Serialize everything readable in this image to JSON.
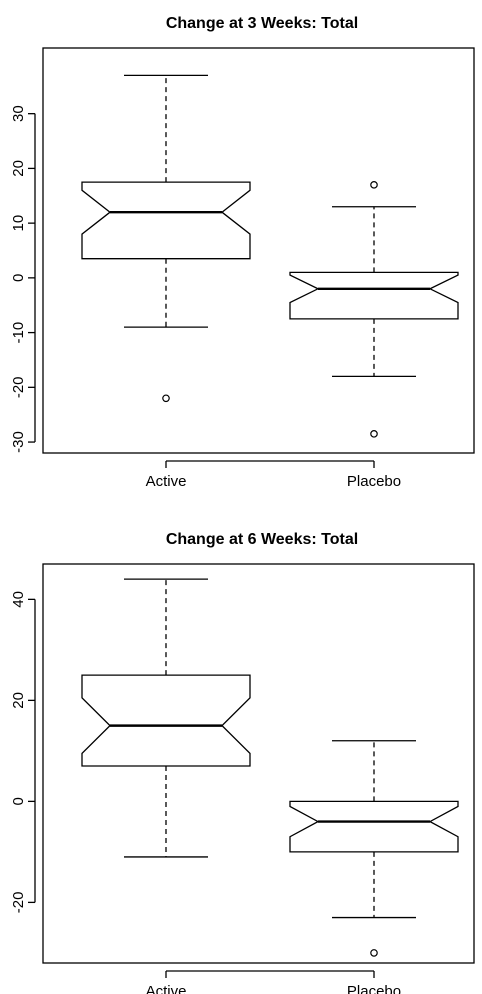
{
  "chart_data": [
    {
      "type": "boxplot",
      "title": "Change at 3 Weeks: Total",
      "xlabel": "",
      "ylabel": "",
      "categories": [
        "Active",
        "Placebo"
      ],
      "ylim": [
        -32,
        42
      ],
      "yticks": [
        -30,
        -20,
        -10,
        0,
        10,
        20,
        30
      ],
      "grid": false,
      "notched": true,
      "boxes": [
        {
          "category": "Active",
          "whisker_low": -9,
          "q1": 3.5,
          "median": 12,
          "q3": 17.5,
          "whisker_high": 37,
          "notch_low": 8,
          "notch_high": 16,
          "outliers": [
            -22
          ]
        },
        {
          "category": "Placebo",
          "whisker_low": -18,
          "q1": -7.5,
          "median": -2,
          "q3": 1,
          "whisker_high": 13,
          "notch_low": -4.5,
          "notch_high": 0.5,
          "outliers": [
            17,
            -28.5
          ]
        }
      ]
    },
    {
      "type": "boxplot",
      "title": "Change at 6 Weeks: Total",
      "xlabel": "",
      "ylabel": "",
      "categories": [
        "Active",
        "Placebo"
      ],
      "ylim": [
        -32,
        47
      ],
      "yticks": [
        -20,
        0,
        20,
        40
      ],
      "grid": false,
      "notched": true,
      "boxes": [
        {
          "category": "Active",
          "whisker_low": -11,
          "q1": 7,
          "median": 15,
          "q3": 25,
          "whisker_high": 44,
          "notch_low": 9.5,
          "notch_high": 20.5,
          "outliers": []
        },
        {
          "category": "Placebo",
          "whisker_low": -23,
          "q1": -10,
          "median": -4,
          "q3": 0,
          "whisker_high": 12,
          "notch_low": -7,
          "notch_high": -1,
          "outliers": [
            -30
          ]
        }
      ]
    }
  ]
}
